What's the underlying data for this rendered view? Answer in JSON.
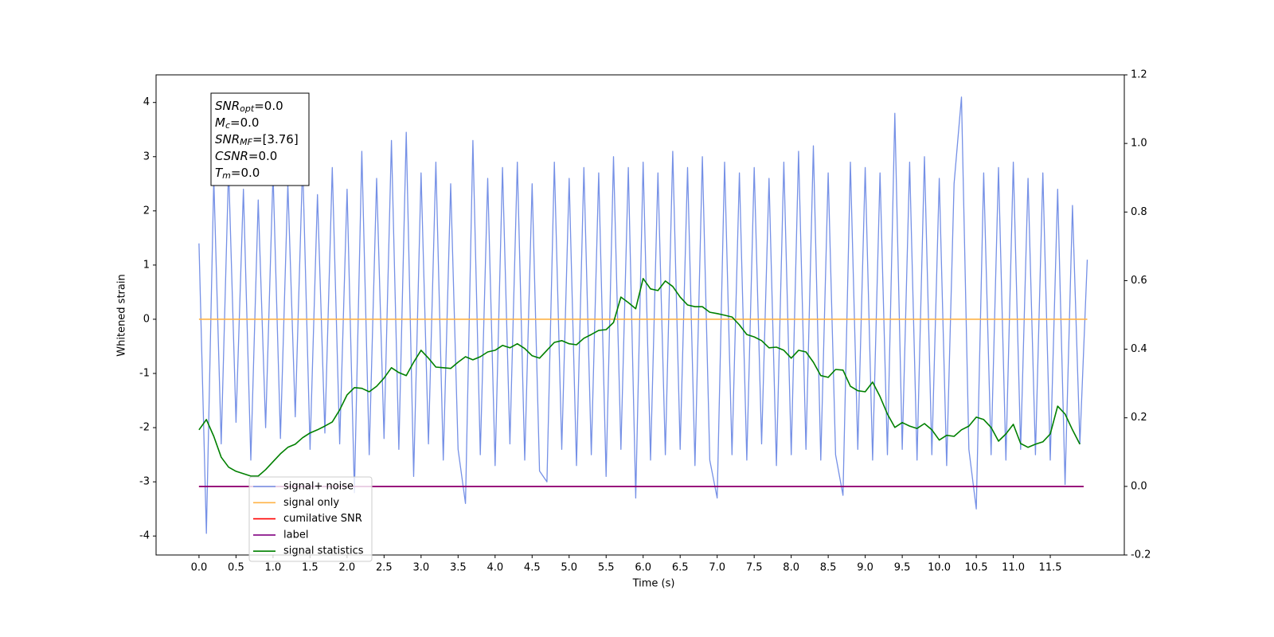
{
  "chart_data": {
    "type": "line",
    "xlabel": "Time (s)",
    "ylabel": "Whitened strain",
    "xlim": [
      -0.58,
      12.5
    ],
    "ylim": [
      -4.35,
      4.51
    ],
    "y2lim": [
      -0.2,
      1.2
    ],
    "xticks": [
      {
        "value": 0,
        "label": "0.0"
      },
      0.5,
      {
        "value": 1,
        "label": "1.0"
      },
      1.5,
      {
        "value": 2,
        "label": "2.0"
      },
      2.5,
      {
        "value": 3,
        "label": "3.0"
      },
      3.5,
      {
        "value": 4,
        "label": "4.0"
      },
      4.5,
      {
        "value": 5,
        "label": "5.0"
      },
      5.5,
      {
        "value": 6,
        "label": "6.0"
      },
      6.5,
      {
        "value": 7,
        "label": "7.0"
      },
      7.5,
      {
        "value": 8,
        "label": "8.0"
      },
      8.5,
      {
        "value": 9,
        "label": "9.0"
      },
      9.5,
      {
        "value": 10,
        "label": "10.0"
      },
      10.5,
      {
        "value": 11,
        "label": "11.0"
      },
      11.5
    ],
    "yticks": [
      -4,
      -3,
      -2,
      -1,
      0,
      1,
      2,
      3,
      4
    ],
    "y2ticks": [
      -0.2,
      {
        "value": 0,
        "label": "0.0"
      },
      0.2,
      0.4,
      0.6,
      0.8,
      {
        "value": 1,
        "label": "1.0"
      },
      1.2
    ],
    "legend": "lower left",
    "annotation": [
      {
        "base": "SNR",
        "sub": "opt",
        "text": "=0.0"
      },
      {
        "base": "M",
        "sub": "c",
        "text": "=0.0"
      },
      {
        "base": "SNR",
        "sub": "MF",
        "text": "=[3.76]"
      },
      {
        "base": "CSNR",
        "sub": null,
        "text": "=0.0"
      },
      {
        "base": "T",
        "sub": "m",
        "text": "=0.0"
      }
    ],
    "series": [
      {
        "name": "signal+ noise",
        "color": "#7590e6",
        "axis": "y",
        "x": [
          0.0,
          0.1,
          0.2,
          0.3,
          0.4,
          0.5,
          0.6,
          0.7,
          0.8,
          0.9,
          1.0,
          1.1,
          1.2,
          1.3,
          1.4,
          1.5,
          1.6,
          1.7,
          1.8,
          1.9,
          2.0,
          2.1,
          2.2,
          2.3,
          2.4,
          2.5,
          2.6,
          2.7,
          2.8,
          2.9,
          3.0,
          3.1,
          3.2,
          3.3,
          3.4,
          3.5,
          3.6,
          3.7,
          3.8,
          3.9,
          4.0,
          4.1,
          4.2,
          4.3,
          4.4,
          4.5,
          4.6,
          4.7,
          4.8,
          4.9,
          5.0,
          5.1,
          5.2,
          5.3,
          5.4,
          5.5,
          5.6,
          5.7,
          5.8,
          5.9,
          6.0,
          6.1,
          6.2,
          6.3,
          6.4,
          6.5,
          6.6,
          6.7,
          6.8,
          6.9,
          7.0,
          7.1,
          7.2,
          7.3,
          7.4,
          7.5,
          7.6,
          7.7,
          7.8,
          7.9,
          8.0,
          8.1,
          8.2,
          8.3,
          8.4,
          8.5,
          8.6,
          8.7,
          8.8,
          8.9,
          9.0,
          9.1,
          9.2,
          9.3,
          9.4,
          9.5,
          9.6,
          9.7,
          9.8,
          9.9,
          10.0,
          10.1,
          10.2,
          10.3,
          10.4,
          10.5,
          10.6,
          10.7,
          10.8,
          10.9,
          11.0,
          11.1,
          11.2,
          11.3,
          11.4,
          11.5,
          11.6,
          11.7,
          11.8,
          11.9,
          12.0
        ],
        "values": [
          1.4,
          -3.95,
          2.6,
          -2.3,
          2.8,
          -1.9,
          2.4,
          -2.6,
          2.2,
          -2.0,
          2.7,
          -2.2,
          2.5,
          -1.8,
          2.9,
          -2.4,
          2.3,
          -2.1,
          2.8,
          -2.3,
          2.4,
          -3.2,
          3.1,
          -2.5,
          2.6,
          -2.2,
          3.3,
          -2.4,
          3.45,
          -2.9,
          2.7,
          -2.3,
          2.9,
          -2.6,
          2.5,
          -2.4,
          -3.4,
          3.3,
          -2.5,
          2.6,
          -2.7,
          2.8,
          -2.3,
          2.9,
          -2.6,
          2.5,
          -2.8,
          -3.0,
          2.9,
          -2.4,
          2.6,
          -2.7,
          2.8,
          -2.5,
          2.7,
          -2.9,
          3.0,
          -2.4,
          2.8,
          -3.3,
          2.9,
          -2.6,
          2.7,
          -2.5,
          3.1,
          -2.4,
          2.8,
          -2.7,
          3.0,
          -2.6,
          -3.3,
          2.9,
          -2.5,
          2.7,
          -2.6,
          2.8,
          -2.3,
          2.6,
          -2.7,
          2.9,
          -2.5,
          3.1,
          -2.4,
          3.2,
          -2.6,
          2.7,
          -2.5,
          -3.25,
          2.9,
          -2.4,
          2.8,
          -2.6,
          2.7,
          -2.5,
          3.8,
          -2.4,
          2.9,
          -2.6,
          3.0,
          -2.5,
          2.6,
          -2.7,
          2.5,
          4.1,
          -2.4,
          -3.5,
          2.7,
          -2.5,
          2.8,
          -2.6,
          2.9,
          -2.4,
          2.6,
          -2.5,
          2.7,
          -2.6,
          2.4,
          -3.05,
          2.1,
          -2.3,
          1.1
        ]
      },
      {
        "name": "signal only",
        "color": "#ffb347",
        "axis": "y",
        "x": [
          0.0,
          12.0
        ],
        "values": [
          0,
          0
        ]
      },
      {
        "name": "cumilative SNR",
        "color": "#ff0000",
        "axis": "y2",
        "x": [
          0.0,
          11.95
        ],
        "values": [
          0,
          0
        ]
      },
      {
        "name": "label",
        "color": "#800080",
        "axis": "y2",
        "x": [
          0.0,
          11.95
        ],
        "values": [
          0,
          0
        ]
      },
      {
        "name": "signal statistics",
        "color": "#008000",
        "axis": "y2",
        "x": [
          0.0,
          0.1,
          0.2,
          0.3,
          0.4,
          0.5,
          0.6,
          0.7,
          0.8,
          0.9,
          1.0,
          1.1,
          1.2,
          1.3,
          1.4,
          1.5,
          1.6,
          1.7,
          1.8,
          1.9,
          2.0,
          2.1,
          2.2,
          2.3,
          2.4,
          2.5,
          2.6,
          2.7,
          2.8,
          2.9,
          3.0,
          3.1,
          3.2,
          3.3,
          3.4,
          3.5,
          3.6,
          3.7,
          3.8,
          3.9,
          4.0,
          4.1,
          4.2,
          4.3,
          4.4,
          4.5,
          4.6,
          4.7,
          4.8,
          4.9,
          5.0,
          5.1,
          5.2,
          5.3,
          5.4,
          5.5,
          5.6,
          5.7,
          5.8,
          5.9,
          6.0,
          6.1,
          6.2,
          6.3,
          6.4,
          6.5,
          6.6,
          6.7,
          6.8,
          6.9,
          7.0,
          7.1,
          7.2,
          7.3,
          7.4,
          7.5,
          7.6,
          7.7,
          7.8,
          7.9,
          8.0,
          8.1,
          8.2,
          8.3,
          8.4,
          8.5,
          8.6,
          8.7,
          8.8,
          8.9,
          9.0,
          9.1,
          9.2,
          9.3,
          9.4,
          9.5,
          9.6,
          9.7,
          9.8,
          9.9,
          10.0,
          10.1,
          10.2,
          10.3,
          10.4,
          10.5,
          10.6,
          10.7,
          10.8,
          10.9,
          11.0,
          11.1,
          11.2,
          11.3,
          11.4,
          11.5,
          11.6,
          11.7,
          11.8,
          11.9
        ],
        "values": [
          0.165,
          0.195,
          0.146,
          0.085,
          0.056,
          0.044,
          0.037,
          0.03,
          0.03,
          0.049,
          0.072,
          0.095,
          0.114,
          0.123,
          0.142,
          0.156,
          0.165,
          0.176,
          0.188,
          0.223,
          0.267,
          0.288,
          0.286,
          0.276,
          0.292,
          0.316,
          0.346,
          0.332,
          0.323,
          0.362,
          0.397,
          0.374,
          0.348,
          0.346,
          0.344,
          0.362,
          0.378,
          0.369,
          0.378,
          0.392,
          0.397,
          0.411,
          0.404,
          0.416,
          0.402,
          0.381,
          0.374,
          0.397,
          0.42,
          0.425,
          0.416,
          0.413,
          0.432,
          0.443,
          0.455,
          0.457,
          0.478,
          0.552,
          0.536,
          0.518,
          0.606,
          0.576,
          0.571,
          0.599,
          0.583,
          0.552,
          0.529,
          0.524,
          0.524,
          0.508,
          0.504,
          0.499,
          0.494,
          0.471,
          0.443,
          0.436,
          0.425,
          0.404,
          0.406,
          0.397,
          0.374,
          0.397,
          0.392,
          0.362,
          0.323,
          0.318,
          0.341,
          0.339,
          0.292,
          0.279,
          0.276,
          0.304,
          0.262,
          0.211,
          0.172,
          0.186,
          0.176,
          0.169,
          0.183,
          0.165,
          0.135,
          0.149,
          0.146,
          0.165,
          0.176,
          0.202,
          0.195,
          0.172,
          0.132,
          0.153,
          0.181,
          0.125,
          0.114,
          0.123,
          0.13,
          0.153,
          0.234,
          0.211,
          0.165,
          0.123
        ]
      }
    ]
  }
}
